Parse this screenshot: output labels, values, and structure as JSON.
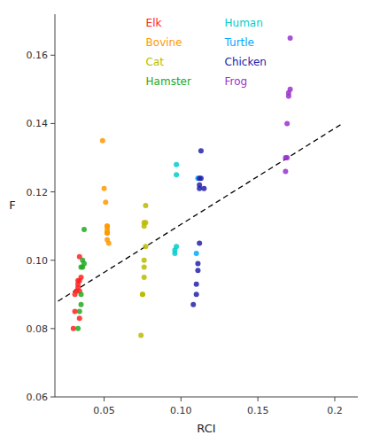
{
  "chart_data": {
    "type": "scatter",
    "xlabel": "RCI",
    "ylabel": "F",
    "xlim": [
      0.018,
      0.215
    ],
    "ylim": [
      0.06,
      0.172
    ],
    "xticks": [
      0.05,
      {
        "value": 0.1,
        "label": "0.10"
      },
      0.15,
      0.2
    ],
    "yticks": [
      0.06,
      0.08,
      {
        "value": 0.1,
        "label": "0.10"
      },
      0.12,
      0.14,
      0.16
    ],
    "grid": false,
    "legend": "top",
    "marker": "circle",
    "series": [
      {
        "name": "Elk",
        "color": "#FF2222",
        "x": [
          0.03,
          0.031,
          0.031,
          0.032,
          0.033,
          0.033,
          0.033,
          0.034,
          0.034,
          0.034,
          0.034,
          0.035
        ],
        "values": [
          0.08,
          0.09,
          0.085,
          0.091,
          0.092,
          0.093,
          0.094,
          0.083,
          0.091,
          0.094,
          0.101,
          0.095
        ]
      },
      {
        "name": "Bovine",
        "color": "#FF9900",
        "x": [
          0.049,
          0.05,
          0.051,
          0.052,
          0.052,
          0.052,
          0.052,
          0.052,
          0.052,
          0.052,
          0.052,
          0.053
        ],
        "values": [
          0.135,
          0.121,
          0.117,
          0.108,
          0.108,
          0.108,
          0.108,
          0.109,
          0.11,
          0.11,
          0.106,
          0.105
        ]
      },
      {
        "name": "Cat",
        "color": "#BBBB00",
        "x": [
          0.074,
          0.075,
          0.075,
          0.076,
          0.076,
          0.076,
          0.076,
          0.076,
          0.077,
          0.077,
          0.077
        ],
        "values": [
          0.078,
          0.09,
          0.09,
          0.095,
          0.098,
          0.1,
          0.11,
          0.111,
          0.104,
          0.111,
          0.116
        ]
      },
      {
        "name": "Hamster",
        "color": "#22AA22",
        "x": [
          0.033,
          0.034,
          0.035,
          0.035,
          0.035,
          0.036,
          0.036,
          0.037,
          0.037
        ],
        "values": [
          0.08,
          0.085,
          0.087,
          0.09,
          0.098,
          0.098,
          0.1,
          0.099,
          0.109
        ]
      },
      {
        "name": "Human",
        "color": "#00CCCC",
        "x": [
          0.096,
          0.096,
          0.097,
          0.097,
          0.097
        ],
        "values": [
          0.102,
          0.103,
          0.104,
          0.125,
          0.128
        ]
      },
      {
        "name": "Turtle",
        "color": "#00AAFF",
        "x": [
          0.11,
          0.111
        ],
        "values": [
          0.102,
          0.124
        ]
      },
      {
        "name": "Chicken",
        "color": "#2222AA",
        "x": [
          0.108,
          0.11,
          0.11,
          0.111,
          0.111,
          0.112,
          0.112,
          0.112,
          0.112,
          0.113,
          0.113,
          0.115
        ],
        "values": [
          0.087,
          0.09,
          0.093,
          0.097,
          0.099,
          0.105,
          0.121,
          0.122,
          0.124,
          0.124,
          0.132,
          0.121
        ]
      },
      {
        "name": "Frog",
        "color": "#9933CC",
        "x": [
          0.168,
          0.168,
          0.169,
          0.169,
          0.17,
          0.17,
          0.171,
          0.171
        ],
        "values": [
          0.126,
          0.13,
          0.13,
          0.14,
          0.148,
          0.149,
          0.15,
          0.165
        ]
      },
      {
        "type": "line",
        "line_style": "dashed",
        "color": "#000000",
        "x": [
          0.02,
          0.205
        ],
        "values": [
          0.088,
          0.14
        ]
      }
    ]
  }
}
